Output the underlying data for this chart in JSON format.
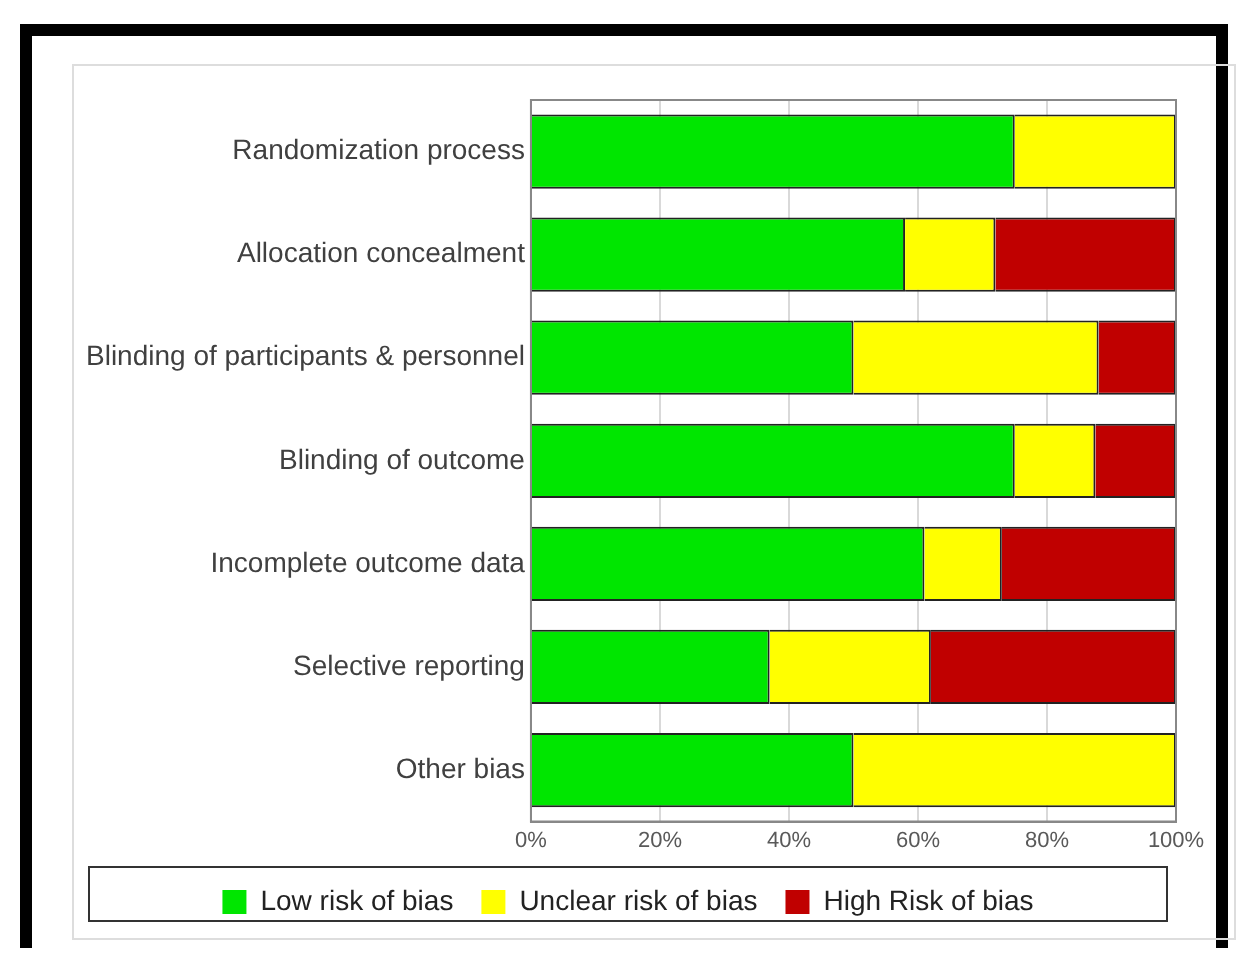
{
  "chart_data": {
    "type": "bar",
    "orientation": "horizontal",
    "stacked": true,
    "categories": [
      "Randomization process",
      "Allocation concealment",
      "Blinding of participants & personnel",
      "Blinding of outcome",
      "Incomplete outcome data",
      "Selective reporting",
      "Other bias"
    ],
    "series": [
      {
        "name": "Low risk of bias",
        "color": "#00e600",
        "values": [
          75,
          58,
          50,
          75,
          61,
          37,
          50
        ]
      },
      {
        "name": "Unclear risk of bias",
        "color": "#ffff00",
        "values": [
          25,
          14,
          38,
          12.5,
          12,
          25,
          50
        ]
      },
      {
        "name": "High Risk of bias",
        "color": "#c00000",
        "values": [
          0,
          28,
          12,
          12.5,
          27,
          38,
          0
        ]
      }
    ],
    "xlim": [
      0,
      100
    ],
    "xticks": [
      {
        "value": 0,
        "label": "0%"
      },
      {
        "value": 20,
        "label": "20%"
      },
      {
        "value": 40,
        "label": "40%"
      },
      {
        "value": 60,
        "label": "60%"
      },
      {
        "value": 80,
        "label": "80%"
      },
      {
        "value": 100,
        "label": "100%"
      }
    ],
    "grid": "x",
    "legend": "bottom"
  }
}
